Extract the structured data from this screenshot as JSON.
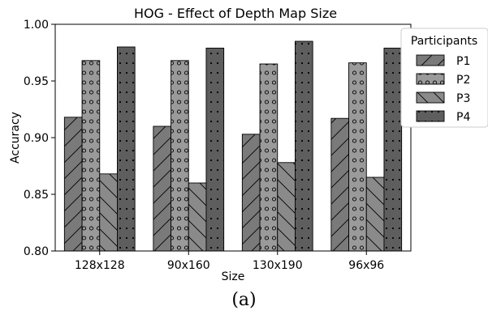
{
  "caption": "(a)",
  "chart_data": {
    "type": "bar",
    "title": "HOG - Effect of Depth Map Size",
    "xlabel": "Size",
    "ylabel": "Accuracy",
    "categories": [
      "128x128",
      "90x160",
      "130x190",
      "96x96"
    ],
    "ylim": [
      0.8,
      1.0
    ],
    "yticks": [
      "0.80",
      "0.85",
      "0.90",
      "0.95",
      "1.00"
    ],
    "legend_title": "Participants",
    "legend_position": "top-right",
    "grid": false,
    "series": [
      {
        "name": "P1",
        "values": [
          0.918,
          0.91,
          0.903,
          0.917
        ],
        "color": "#7a7a7a",
        "hatch": "diag-up"
      },
      {
        "name": "P2",
        "values": [
          0.968,
          0.968,
          0.965,
          0.966
        ],
        "color": "#9a9a9a",
        "hatch": "circles"
      },
      {
        "name": "P3",
        "values": [
          0.868,
          0.86,
          0.878,
          0.865
        ],
        "color": "#8a8a8a",
        "hatch": "diag-down"
      },
      {
        "name": "P4",
        "values": [
          0.98,
          0.979,
          0.985,
          0.979
        ],
        "color": "#5e5e5e",
        "hatch": "dots"
      }
    ]
  }
}
